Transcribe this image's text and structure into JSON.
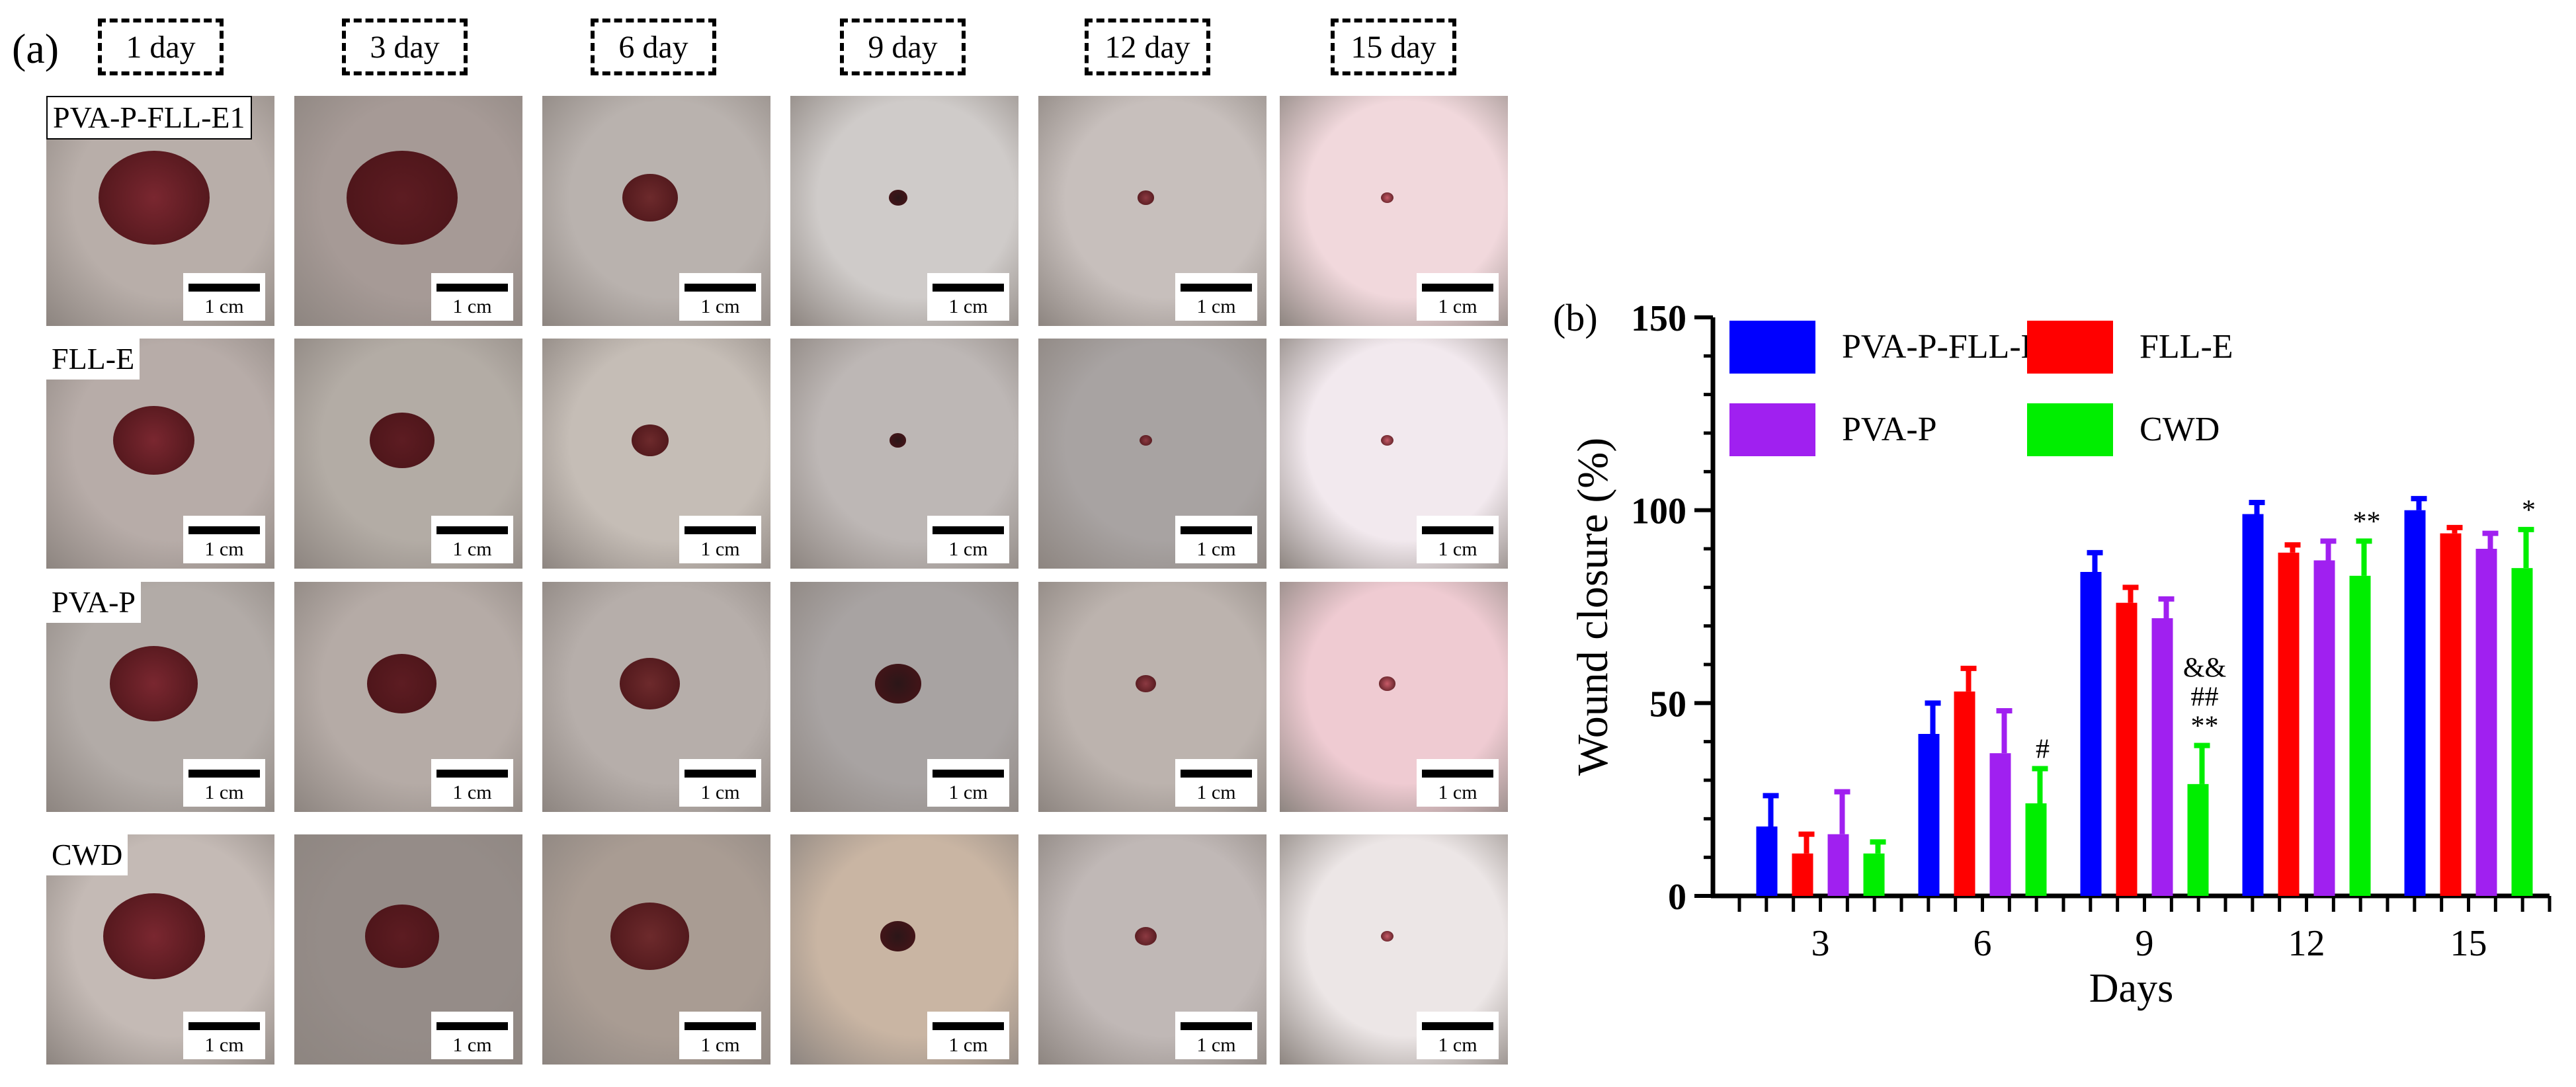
{
  "panel_a": {
    "label": "(a)",
    "days": [
      "1 day",
      "3 day",
      "6 day",
      "9 day",
      "12 day",
      "15 day"
    ],
    "groups": [
      "PVA-P-FLL-E1",
      "FLL-E",
      "PVA-P",
      "CWD"
    ],
    "scale_label": "1 cm"
  },
  "chart_data": {
    "panel_label": "(b)",
    "type": "bar",
    "categories": [
      "3",
      "6",
      "9",
      "12",
      "15"
    ],
    "series": [
      {
        "name": "PVA-P-FLL-E1",
        "color": "#0000ff",
        "values": [
          18,
          42,
          84,
          99,
          100
        ],
        "errors": [
          8,
          8,
          5,
          3,
          3
        ]
      },
      {
        "name": "FLL-E",
        "color": "#ff0000",
        "values": [
          11,
          53,
          76,
          89,
          94
        ],
        "errors": [
          5,
          6,
          4,
          2,
          1.5
        ]
      },
      {
        "name": "PVA-P",
        "color": "#a020f0",
        "values": [
          16,
          37,
          72,
          87,
          90
        ],
        "errors": [
          11,
          11,
          5,
          5,
          4
        ]
      },
      {
        "name": "CWD",
        "color": "#00ee00",
        "values": [
          11,
          24,
          29,
          83,
          85
        ],
        "errors": [
          3,
          9,
          10,
          9,
          10
        ]
      }
    ],
    "annotations": [
      {
        "category": "6",
        "series": "CWD",
        "text": [
          "#"
        ]
      },
      {
        "category": "9",
        "series": "CWD",
        "text": [
          "&&",
          "##",
          "**"
        ]
      },
      {
        "category": "12",
        "series": "CWD",
        "text": [
          "**"
        ]
      },
      {
        "category": "15",
        "series": "CWD",
        "text": [
          "*"
        ]
      }
    ],
    "xlabel": "Days",
    "ylabel": "Wound closure (%)",
    "ylim": [
      0,
      150
    ],
    "yticks": [
      0,
      50,
      100,
      150
    ],
    "grid": false,
    "legend_placement": "top-left"
  }
}
